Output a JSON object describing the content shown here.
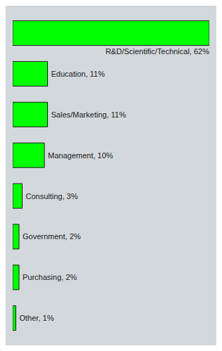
{
  "chart_data": {
    "type": "bar",
    "orientation": "horizontal",
    "categories": [
      "R&D/Scientific/Technical",
      "Education",
      "Sales/Marketing",
      "Management",
      "Consulting",
      "Government",
      "Purchasing",
      "Other"
    ],
    "values": [
      62,
      11,
      11,
      10,
      3,
      2,
      2,
      1
    ],
    "value_labels": [
      "R&D/Scientific/Technical, 62%",
      "Education, 11%",
      "Sales/Marketing, 11%",
      "Management, 10%",
      "Consulting, 3%",
      "Government, 2%",
      "Purchasing, 2%",
      "Other, 1%"
    ],
    "data_labels": true,
    "color": "#00ff00",
    "xlim": [
      0,
      62
    ],
    "tick_labels": false
  }
}
